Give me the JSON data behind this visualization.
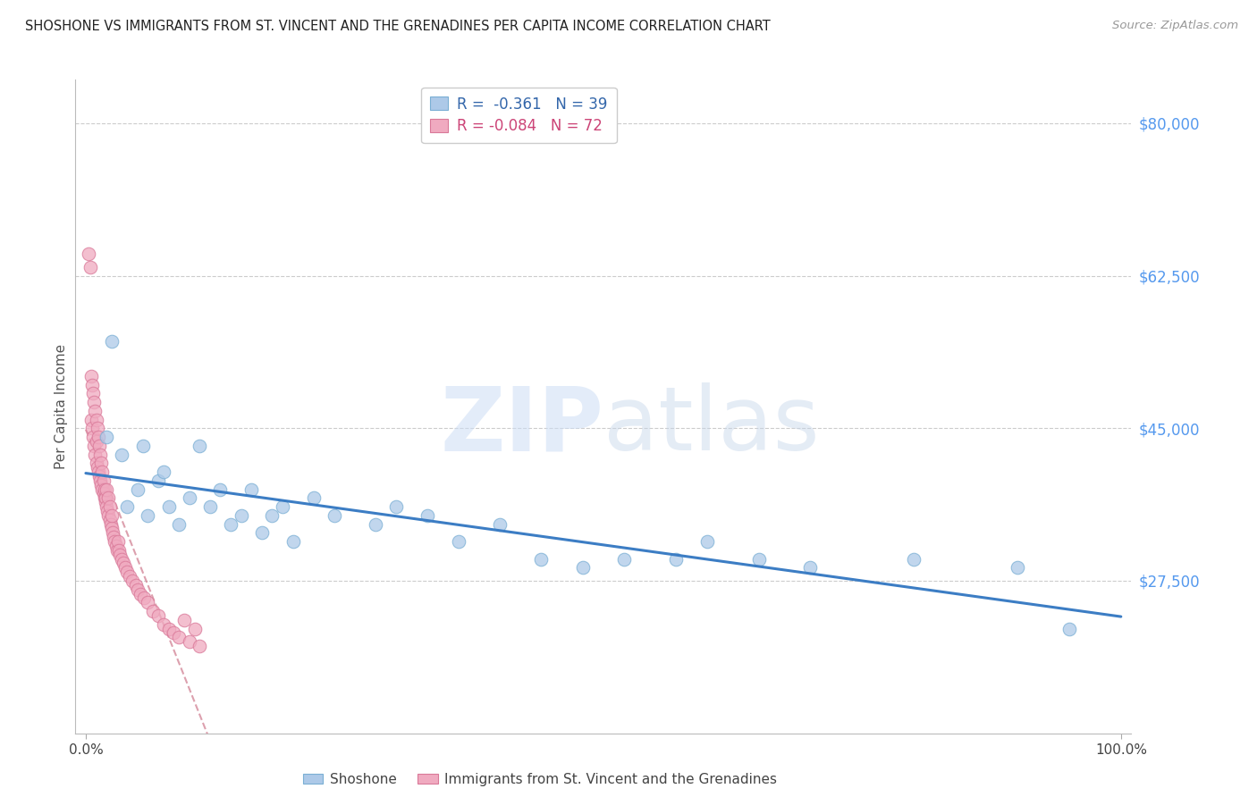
{
  "title": "SHOSHONE VS IMMIGRANTS FROM ST. VINCENT AND THE GRENADINES PER CAPITA INCOME CORRELATION CHART",
  "source": "Source: ZipAtlas.com",
  "ylabel": "Per Capita Income",
  "xmin": 0.0,
  "xmax": 100.0,
  "ymin": 10000,
  "ymax": 85000,
  "background_color": "#ffffff",
  "shoshone_color": "#adc9e8",
  "shoshone_edge_color": "#7aafd4",
  "immigrant_color": "#f0aac0",
  "immigrant_edge_color": "#d97898",
  "shoshone_line_color": "#3c7dc4",
  "immigrant_line_color": "#d4899a",
  "R_shoshone": -0.361,
  "N_shoshone": 39,
  "R_immigrant": -0.084,
  "N_immigrant": 72,
  "legend_label_1": "Shoshone",
  "legend_label_2": "Immigrants from St. Vincent and the Grenadines",
  "watermark_zip": "ZIP",
  "watermark_atlas": "atlas",
  "ytick_vals": [
    80000,
    62500,
    45000,
    27500
  ],
  "ytick_labels": [
    "$80,000",
    "$62,500",
    "$45,000",
    "$27,500"
  ],
  "ytick_color": "#5599ee",
  "grid_color": "#cccccc",
  "shoshone_x": [
    2.0,
    2.5,
    3.5,
    4.0,
    5.0,
    5.5,
    6.0,
    7.0,
    7.5,
    8.0,
    9.0,
    10.0,
    11.0,
    12.0,
    13.0,
    14.0,
    15.0,
    16.0,
    17.0,
    18.0,
    19.0,
    20.0,
    22.0,
    24.0,
    28.0,
    30.0,
    33.0,
    36.0,
    40.0,
    44.0,
    48.0,
    52.0,
    57.0,
    60.0,
    65.0,
    70.0,
    80.0,
    90.0,
    95.0
  ],
  "shoshone_y": [
    44000,
    55000,
    42000,
    36000,
    38000,
    43000,
    35000,
    39000,
    40000,
    36000,
    34000,
    37000,
    43000,
    36000,
    38000,
    34000,
    35000,
    38000,
    33000,
    35000,
    36000,
    32000,
    37000,
    35000,
    34000,
    36000,
    35000,
    32000,
    34000,
    30000,
    29000,
    30000,
    30000,
    32000,
    30000,
    29000,
    30000,
    29000,
    22000
  ],
  "immigrant_x": [
    0.3,
    0.4,
    0.5,
    0.5,
    0.6,
    0.6,
    0.7,
    0.7,
    0.8,
    0.8,
    0.9,
    0.9,
    1.0,
    1.0,
    1.0,
    1.1,
    1.1,
    1.2,
    1.2,
    1.3,
    1.3,
    1.4,
    1.4,
    1.5,
    1.5,
    1.6,
    1.6,
    1.7,
    1.7,
    1.8,
    1.8,
    1.9,
    1.9,
    2.0,
    2.0,
    2.1,
    2.2,
    2.2,
    2.3,
    2.3,
    2.4,
    2.5,
    2.5,
    2.6,
    2.7,
    2.8,
    2.9,
    3.0,
    3.1,
    3.2,
    3.3,
    3.5,
    3.6,
    3.8,
    4.0,
    4.2,
    4.5,
    4.8,
    5.0,
    5.3,
    5.6,
    6.0,
    6.5,
    7.0,
    7.5,
    8.0,
    8.5,
    9.0,
    9.5,
    10.0,
    10.5,
    11.0
  ],
  "immigrant_y": [
    65000,
    63500,
    46000,
    51000,
    45000,
    50000,
    44000,
    49000,
    43000,
    48000,
    42000,
    47000,
    41000,
    46000,
    43500,
    40500,
    45000,
    40000,
    44000,
    39500,
    43000,
    39000,
    42000,
    38500,
    41000,
    38000,
    40000,
    37500,
    39000,
    37000,
    38000,
    36500,
    37000,
    36000,
    38000,
    35500,
    35000,
    37000,
    34500,
    36000,
    34000,
    33500,
    35000,
    33000,
    32500,
    32000,
    31500,
    31000,
    32000,
    31000,
    30500,
    30000,
    29500,
    29000,
    28500,
    28000,
    27500,
    27000,
    26500,
    26000,
    25500,
    25000,
    24000,
    23500,
    22500,
    22000,
    21500,
    21000,
    23000,
    20500,
    22000,
    20000
  ]
}
